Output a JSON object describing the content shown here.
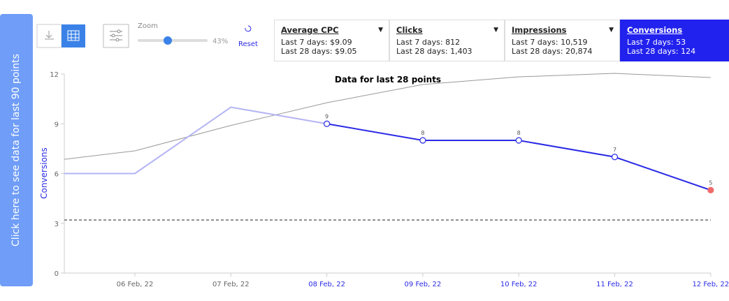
{
  "side_button": "Click here to see data for last 90 points",
  "toolbar": {
    "zoom": {
      "label": "Zoom",
      "value": 43,
      "value_label": "43%"
    },
    "reset": "Reset"
  },
  "metrics": [
    {
      "title": "Average CPC",
      "lines": [
        "Last 7 days: $9.09",
        "Last 28 days: $9.05"
      ],
      "selected": false
    },
    {
      "title": "Clicks",
      "lines": [
        "Last 7 days: 812",
        "Last 28 days: 1,403"
      ],
      "selected": false
    },
    {
      "title": "Impressions",
      "lines": [
        "Last 7 days: 10,519",
        "Last 28 days: 20,874"
      ],
      "selected": false
    },
    {
      "title": "Conversions",
      "lines": [
        "Last 7 days: 53",
        "Last 28 days: 124"
      ],
      "selected": true
    }
  ],
  "chart": {
    "type": "line",
    "title": "Data for last 28 points",
    "y_label": "Conversions",
    "categories": [
      null,
      "06 Feb, 22",
      "07 Feb, 22",
      "08 Feb, 22",
      "09 Feb, 22",
      "10 Feb, 22",
      "11 Feb, 22",
      "12 Feb, 22"
    ],
    "series": [
      {
        "color": "#b4b4f4",
        "values": [
          6,
          6,
          10,
          9,
          null,
          null,
          null,
          null
        ]
      },
      {
        "color": "#2a2ae6",
        "values": [
          null,
          null,
          null,
          9,
          8,
          8,
          7,
          5
        ],
        "data_labels": true,
        "last_point_color": "#f06a6a"
      },
      {
        "color": "#999999",
        "values": [
          6.86,
          7.37,
          8.9,
          10.27,
          11.37,
          11.83,
          12.04,
          11.79
        ]
      }
    ],
    "reference_line": 3.2,
    "ylim": [
      0,
      12
    ],
    "yticks": [
      0,
      3,
      6,
      9,
      12
    ]
  }
}
